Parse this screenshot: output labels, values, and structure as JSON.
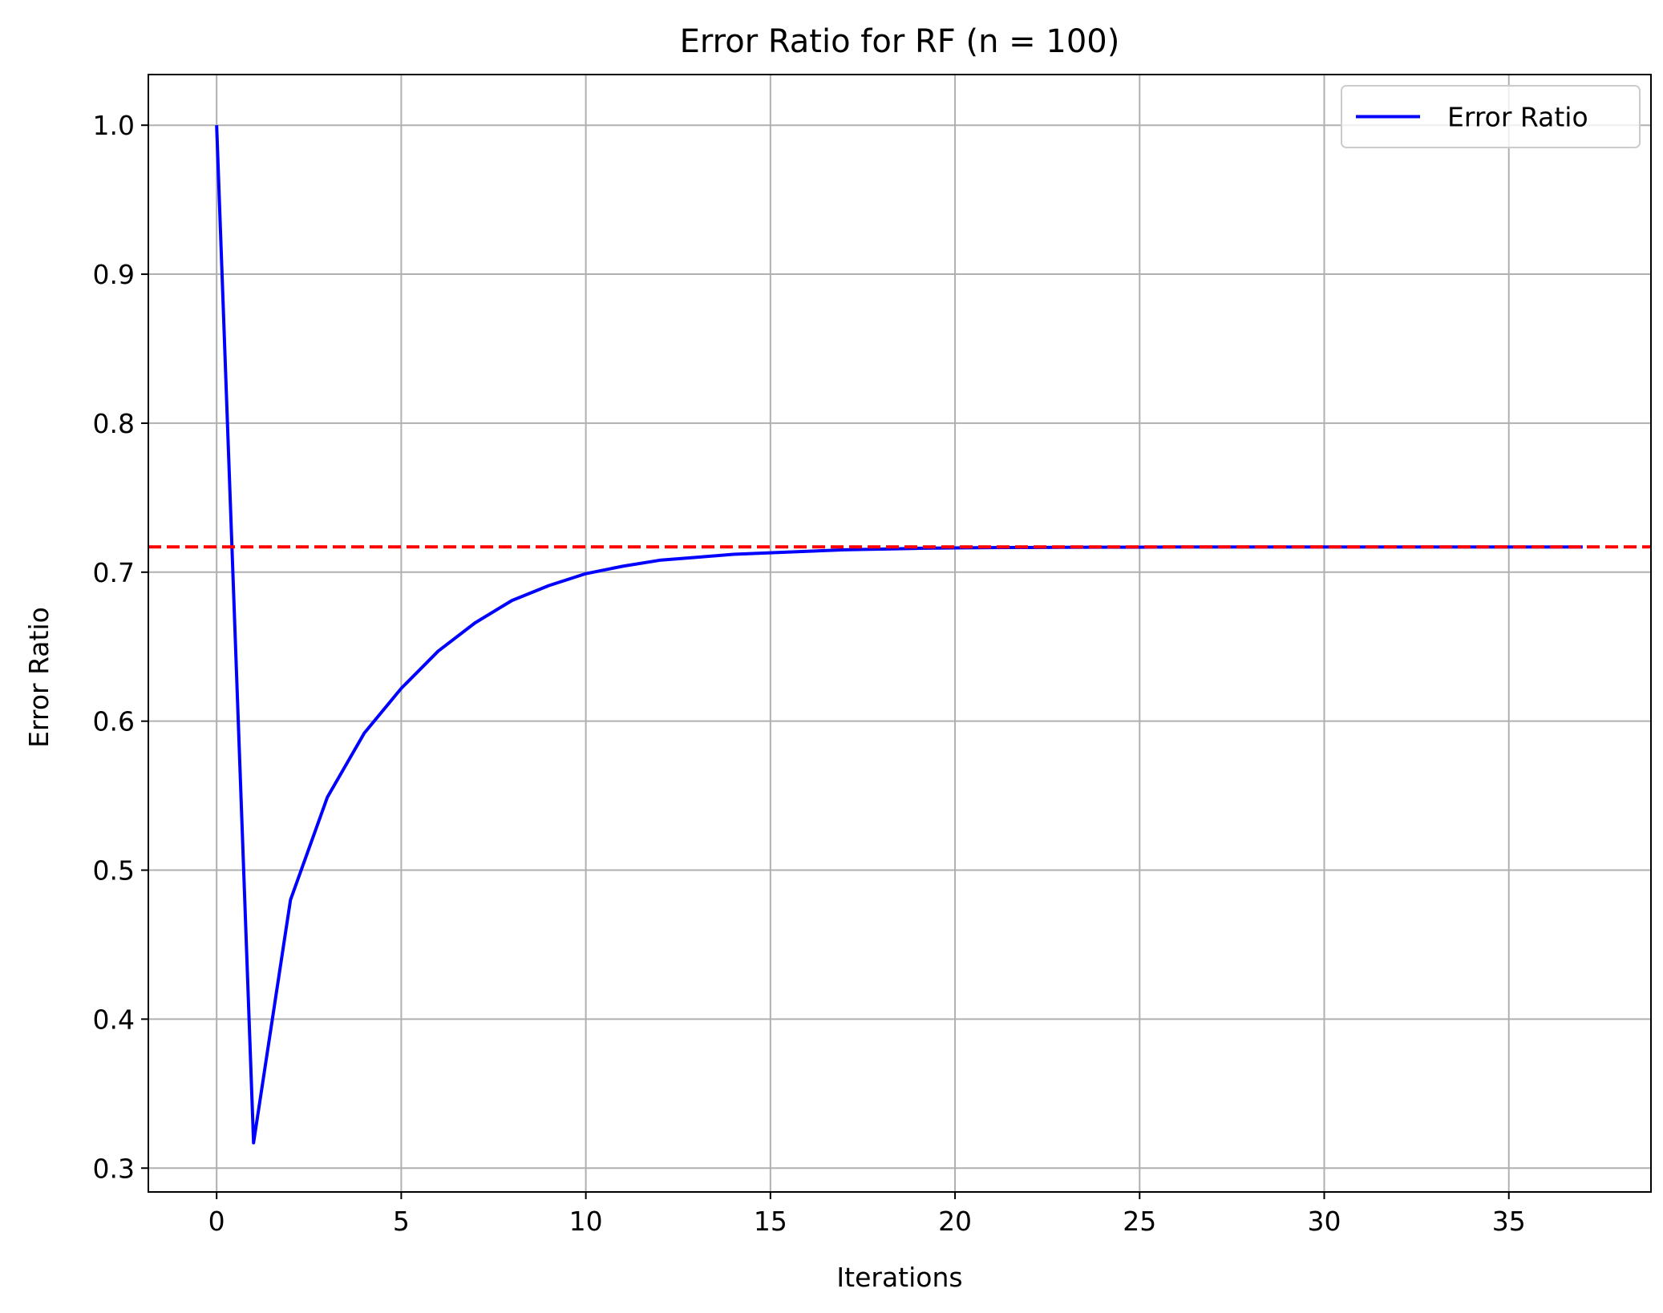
{
  "chart_data": {
    "type": "line",
    "title": "Error Ratio for RF (n = 100)",
    "xlabel": "Iterations",
    "ylabel": "Error Ratio",
    "xlim": [
      -1.85,
      38.85
    ],
    "ylim": [
      0.284,
      1.034
    ],
    "xticks": [
      0,
      5,
      10,
      15,
      20,
      25,
      30,
      35
    ],
    "xtick_labels": [
      "0",
      "5",
      "10",
      "15",
      "20",
      "25",
      "30",
      "35"
    ],
    "yticks": [
      0.3,
      0.4,
      0.5,
      0.6,
      0.7,
      0.8,
      0.9,
      1.0
    ],
    "ytick_labels": [
      "0.3",
      "0.4",
      "0.5",
      "0.6",
      "0.7",
      "0.8",
      "0.9",
      "1.0"
    ],
    "grid": true,
    "legend_position": "top-right",
    "series": [
      {
        "name": "Error Ratio",
        "color": "#0000ff",
        "line_style": "solid",
        "x": [
          0,
          1,
          2,
          3,
          4,
          5,
          6,
          7,
          8,
          9,
          10,
          11,
          12,
          13,
          14,
          15,
          16,
          17,
          18,
          19,
          20,
          21,
          22,
          23,
          24,
          25,
          26,
          27,
          28,
          29,
          30,
          31,
          32,
          33,
          34,
          35,
          36,
          37
        ],
        "y": [
          1.0,
          0.317,
          0.48,
          0.549,
          0.592,
          0.622,
          0.647,
          0.666,
          0.681,
          0.691,
          0.699,
          0.704,
          0.708,
          0.71,
          0.712,
          0.713,
          0.714,
          0.715,
          0.7155,
          0.716,
          0.7163,
          0.7165,
          0.7166,
          0.7167,
          0.7168,
          0.7168,
          0.7169,
          0.7169,
          0.7169,
          0.7169,
          0.7169,
          0.7169,
          0.7169,
          0.7169,
          0.7169,
          0.7169,
          0.7169,
          0.7169
        ]
      }
    ],
    "reference_lines": [
      {
        "orientation": "horizontal",
        "y": 0.717,
        "color": "#ff0000",
        "line_style": "dashed"
      }
    ]
  }
}
